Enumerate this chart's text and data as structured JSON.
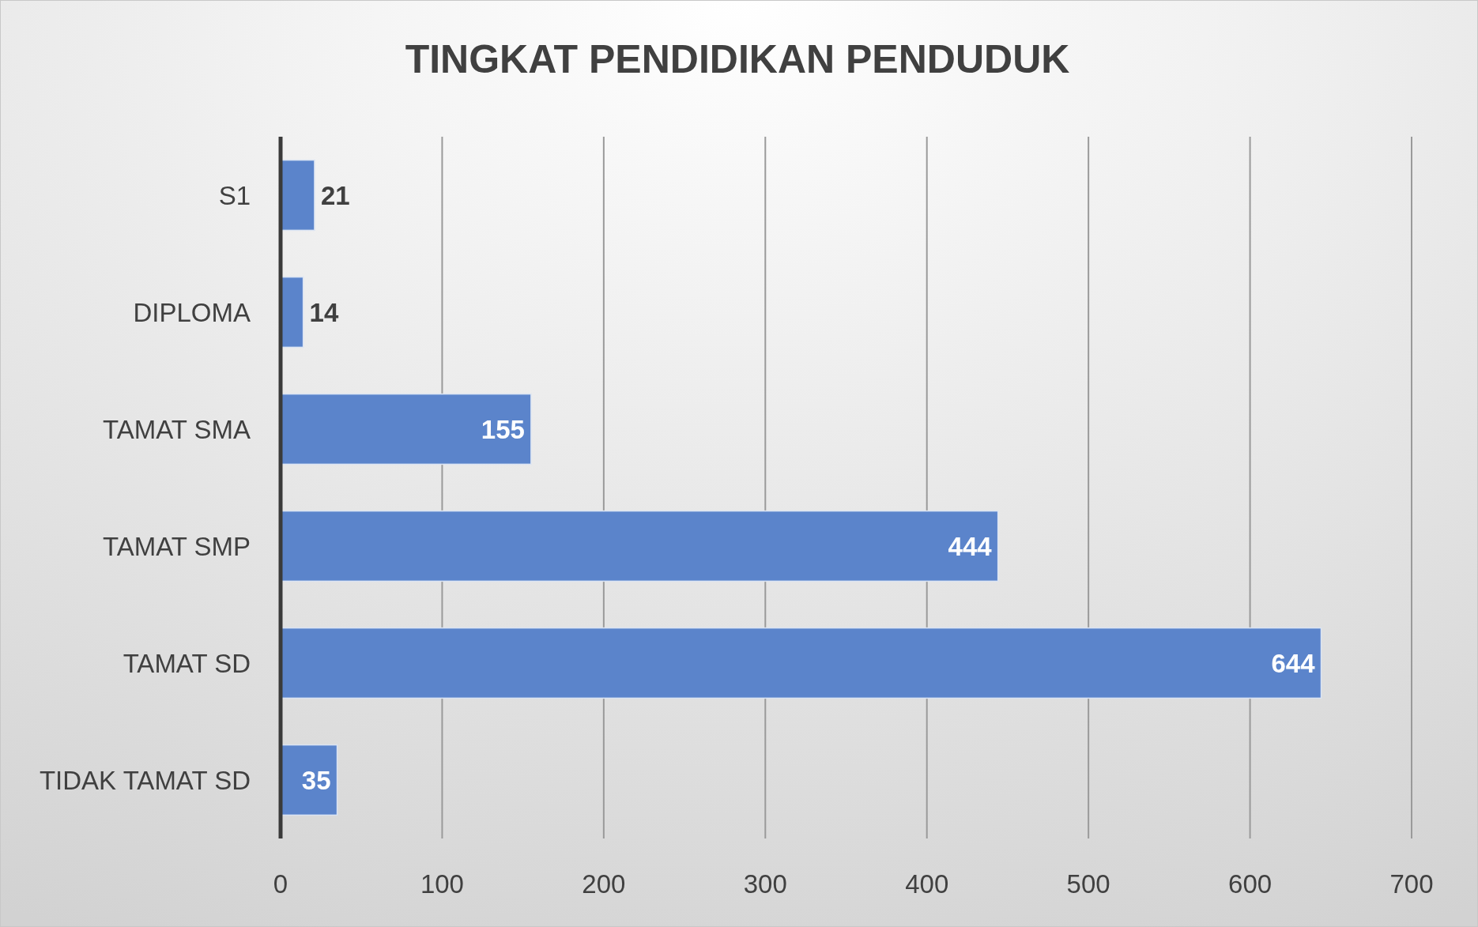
{
  "chart_data": {
    "type": "bar",
    "orientation": "horizontal",
    "title": "TINGKAT PENDIDIKAN PENDUDUK",
    "categories": [
      "S1",
      "DIPLOMA",
      "TAMAT SMA",
      "TAMAT SMP",
      "TAMAT SD",
      "TIDAK TAMAT SD"
    ],
    "values": [
      21,
      14,
      155,
      444,
      644,
      35
    ],
    "color": "#5b84cb",
    "xlim": [
      0,
      700
    ],
    "xticks": [
      0,
      100,
      200,
      300,
      400,
      500,
      600,
      700
    ],
    "grid": "x",
    "data_labels": true
  }
}
